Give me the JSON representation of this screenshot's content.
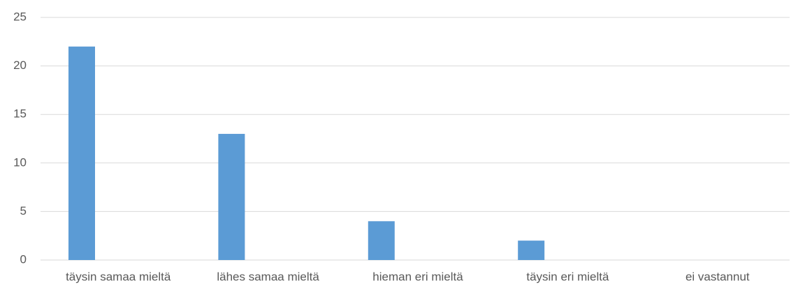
{
  "chart_data": {
    "type": "bar",
    "categories": [
      "täysin samaa mieltä",
      "lähes samaa mieltä",
      "hieman eri mieltä",
      "täysin eri mieltä",
      "ei vastannut"
    ],
    "values": [
      22,
      13,
      4,
      2,
      0
    ],
    "color": "#5b9bd5",
    "ylim": [
      0,
      25
    ],
    "yticks": [
      0,
      5,
      10,
      15,
      20,
      25
    ],
    "grid": true
  }
}
